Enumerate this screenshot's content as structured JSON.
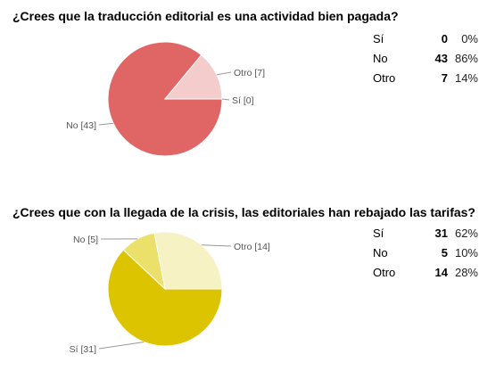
{
  "questions": [
    {
      "title": "¿Crees que la traducción editorial es una actividad bien pagada?",
      "rows": [
        {
          "label": "Sí",
          "count": "0",
          "pct": "0%"
        },
        {
          "label": "No",
          "count": "43",
          "pct": "86%"
        },
        {
          "label": "Otro",
          "count": "7",
          "pct": "14%"
        }
      ]
    },
    {
      "title": "¿Crees que con la llegada de la crisis, las editoriales han rebajado las tarifas?",
      "rows": [
        {
          "label": "Sí",
          "count": "31",
          "pct": "62%"
        },
        {
          "label": "No",
          "count": "5",
          "pct": "10%"
        },
        {
          "label": "Otro",
          "count": "14",
          "pct": "28%"
        }
      ]
    }
  ],
  "chart_data": [
    {
      "type": "pie",
      "title": "¿Crees que la traducción editorial es una actividad bien pagada?",
      "slices": [
        {
          "name": "Sí",
          "value": 0,
          "label": "Sí [0]",
          "color": "#e06666"
        },
        {
          "name": "No",
          "value": 43,
          "label": "No [43]",
          "color": "#e06666"
        },
        {
          "name": "Otro",
          "value": 7,
          "label": "Otro [7]",
          "color": "#f4cccc"
        }
      ]
    },
    {
      "type": "pie",
      "title": "¿Crees que con la llegada de la crisis, las editoriales han rebajado las tarifas?",
      "slices": [
        {
          "name": "Sí",
          "value": 31,
          "label": "Sí [31]",
          "color": "#dcc400"
        },
        {
          "name": "No",
          "value": 5,
          "label": "No [5]",
          "color": "#ebe06a"
        },
        {
          "name": "Otro",
          "value": 14,
          "label": "Otro [14]",
          "color": "#f6f2c4"
        }
      ]
    }
  ]
}
